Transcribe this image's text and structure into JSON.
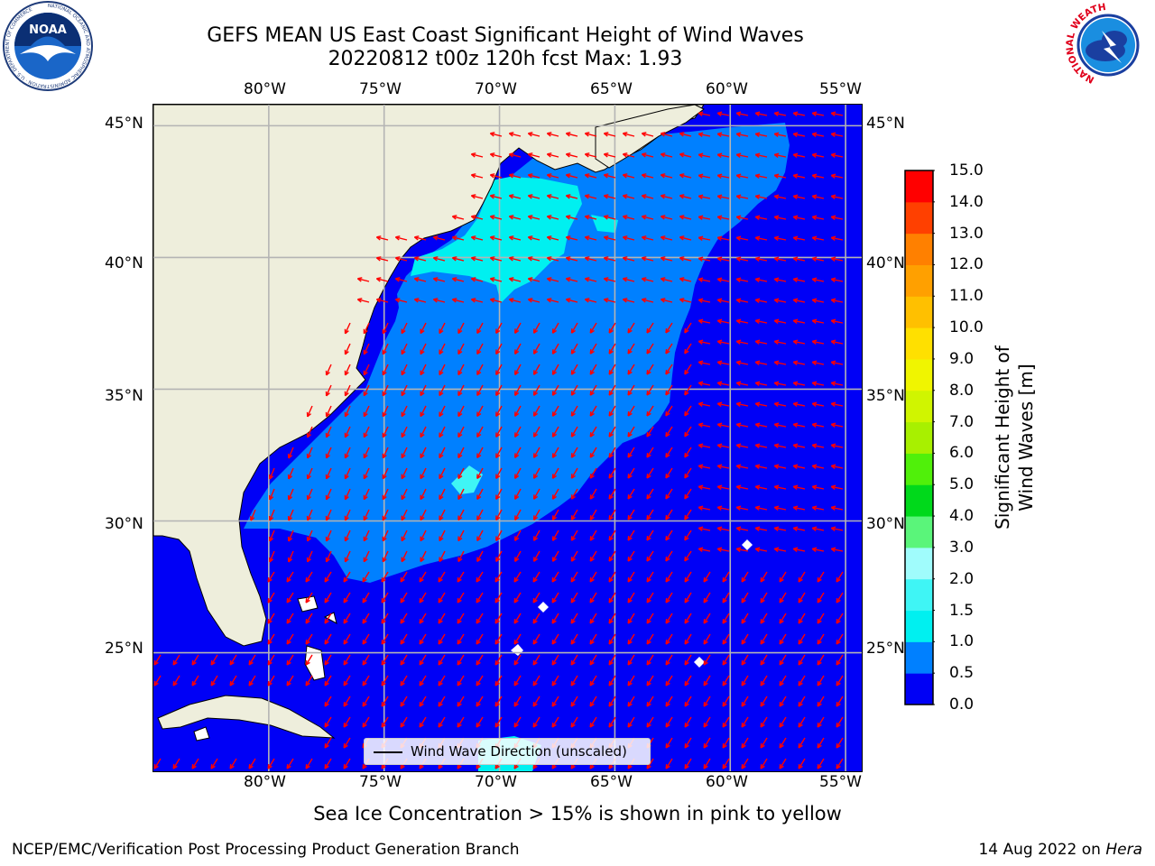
{
  "title": {
    "line1": "GEFS MEAN US East Coast Significant Height of Wind Waves",
    "line2": "20220812 t00z 120h fcst   Max: 1.93"
  },
  "logos": {
    "left": {
      "name": "noaa-logo",
      "text": "NOAA",
      "ring_text": "NATIONAL OCEANIC AND ATMOSPHERIC ADMINISTRATION · U.S. DEPARTMENT OF COMMERCE"
    },
    "right": {
      "name": "nws-logo",
      "ring_text": "NATIONAL WEATHER SERVICE"
    }
  },
  "map": {
    "lon_ticks_top": [
      "80°W",
      "75°W",
      "70°W",
      "65°W",
      "60°W",
      "55°W"
    ],
    "lon_ticks_bottom": [
      "80°W",
      "75°W",
      "70°W",
      "65°W",
      "60°W",
      "55°W"
    ],
    "lat_ticks_left": [
      "45°N",
      "40°N",
      "35°N",
      "30°N",
      "25°N"
    ],
    "lat_ticks_right": [
      "45°N",
      "40°N",
      "35°N",
      "30°N",
      "25°N"
    ],
    "lon_values": [
      -80,
      -75,
      -70,
      -65,
      -60,
      -55
    ],
    "lat_values": [
      45,
      40,
      35,
      30,
      25
    ],
    "lon_range": [
      -85,
      -54.3
    ],
    "lat_range": [
      20.5,
      45.8
    ],
    "max_value": 1.93,
    "land_color": "#eeeedc",
    "ocean_low_color": "#0000f6",
    "ocean_mid_color": "#0080ff",
    "ocean_high_color": "#00f0f0",
    "arrow_color": "#ff0000",
    "grid": true
  },
  "legend": {
    "label": "Wind Wave Direction (unscaled)"
  },
  "colorbar": {
    "title": "Significant Height of Wind Waves [m]",
    "levels": [
      "0.0",
      "0.5",
      "1.0",
      "1.5",
      "2.0",
      "3.0",
      "4.0",
      "5.0",
      "6.0",
      "7.0",
      "8.0",
      "9.0",
      "10.0",
      "11.0",
      "12.0",
      "13.0",
      "14.0",
      "15.0"
    ],
    "colors": [
      "#0000f5",
      "#0080ff",
      "#00f0f0",
      "#3ff5f5",
      "#a0fcfc",
      "#5af57a",
      "#00d91b",
      "#50f00a",
      "#a8f000",
      "#d0f500",
      "#f0f500",
      "#ffe000",
      "#ffc000",
      "#ffa000",
      "#ff8000",
      "#ff4000",
      "#ff0000"
    ]
  },
  "footer": {
    "main": "Sea Ice Concentration > 15% is shown in pink to yellow",
    "left": "NCEP/EMC/Verification Post Processing Product Generation Branch",
    "right_date": "14 Aug 2022 on",
    "right_host": "Hera"
  }
}
